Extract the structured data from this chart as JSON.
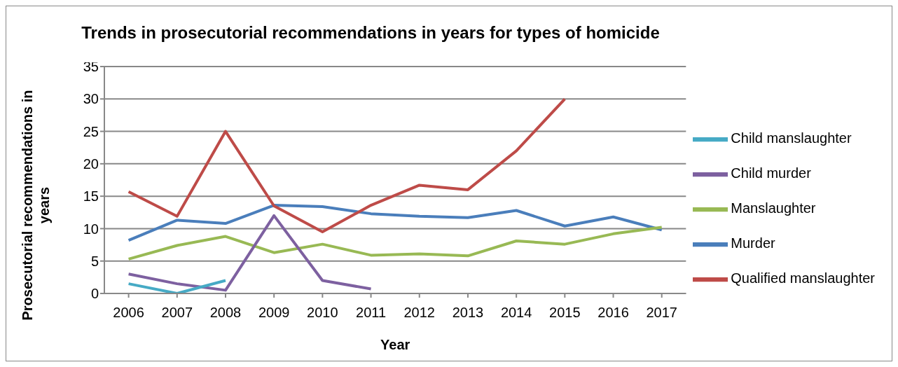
{
  "chart_data": {
    "type": "line",
    "title": "Trends in prosecutorial recommendations in years for types of homicide",
    "xlabel": "Year",
    "ylabel": "Prosecutorial recommendations in years",
    "categories": [
      "2006",
      "2007",
      "2008",
      "2009",
      "2010",
      "2011",
      "2012",
      "2013",
      "2014",
      "2015",
      "2016",
      "2017"
    ],
    "series": [
      {
        "name": "Murder",
        "color": "#4a7ebb",
        "values": [
          8.2,
          11.3,
          10.8,
          13.6,
          13.4,
          12.3,
          11.9,
          11.7,
          12.8,
          10.4,
          11.8,
          9.8
        ]
      },
      {
        "name": "Qualified manslaughter",
        "color": "#be4b48",
        "values": [
          15.7,
          11.9,
          25,
          13.5,
          9.5,
          13.6,
          16.7,
          16,
          22,
          30,
          null,
          null
        ]
      },
      {
        "name": "Manslaughter",
        "color": "#98b954",
        "values": [
          5.3,
          7.4,
          8.8,
          6.3,
          7.6,
          5.9,
          6.1,
          5.8,
          8.1,
          7.6,
          9.2,
          10.2
        ]
      },
      {
        "name": "Child murder",
        "color": "#7d60a0",
        "values": [
          3,
          1.5,
          0.5,
          12,
          2,
          0.7,
          null,
          null,
          null,
          null,
          null,
          null
        ]
      },
      {
        "name": "Child manslaughter",
        "color": "#46aac5",
        "values": [
          1.5,
          0,
          2,
          null,
          null,
          null,
          null,
          null,
          null,
          null,
          null,
          null
        ]
      }
    ],
    "ylim": [
      0,
      35
    ],
    "yticks": [
      0,
      5,
      10,
      15,
      20,
      25,
      30,
      35
    ],
    "grid": "y",
    "legend": "right",
    "marker": "none",
    "line_style": "solid"
  }
}
